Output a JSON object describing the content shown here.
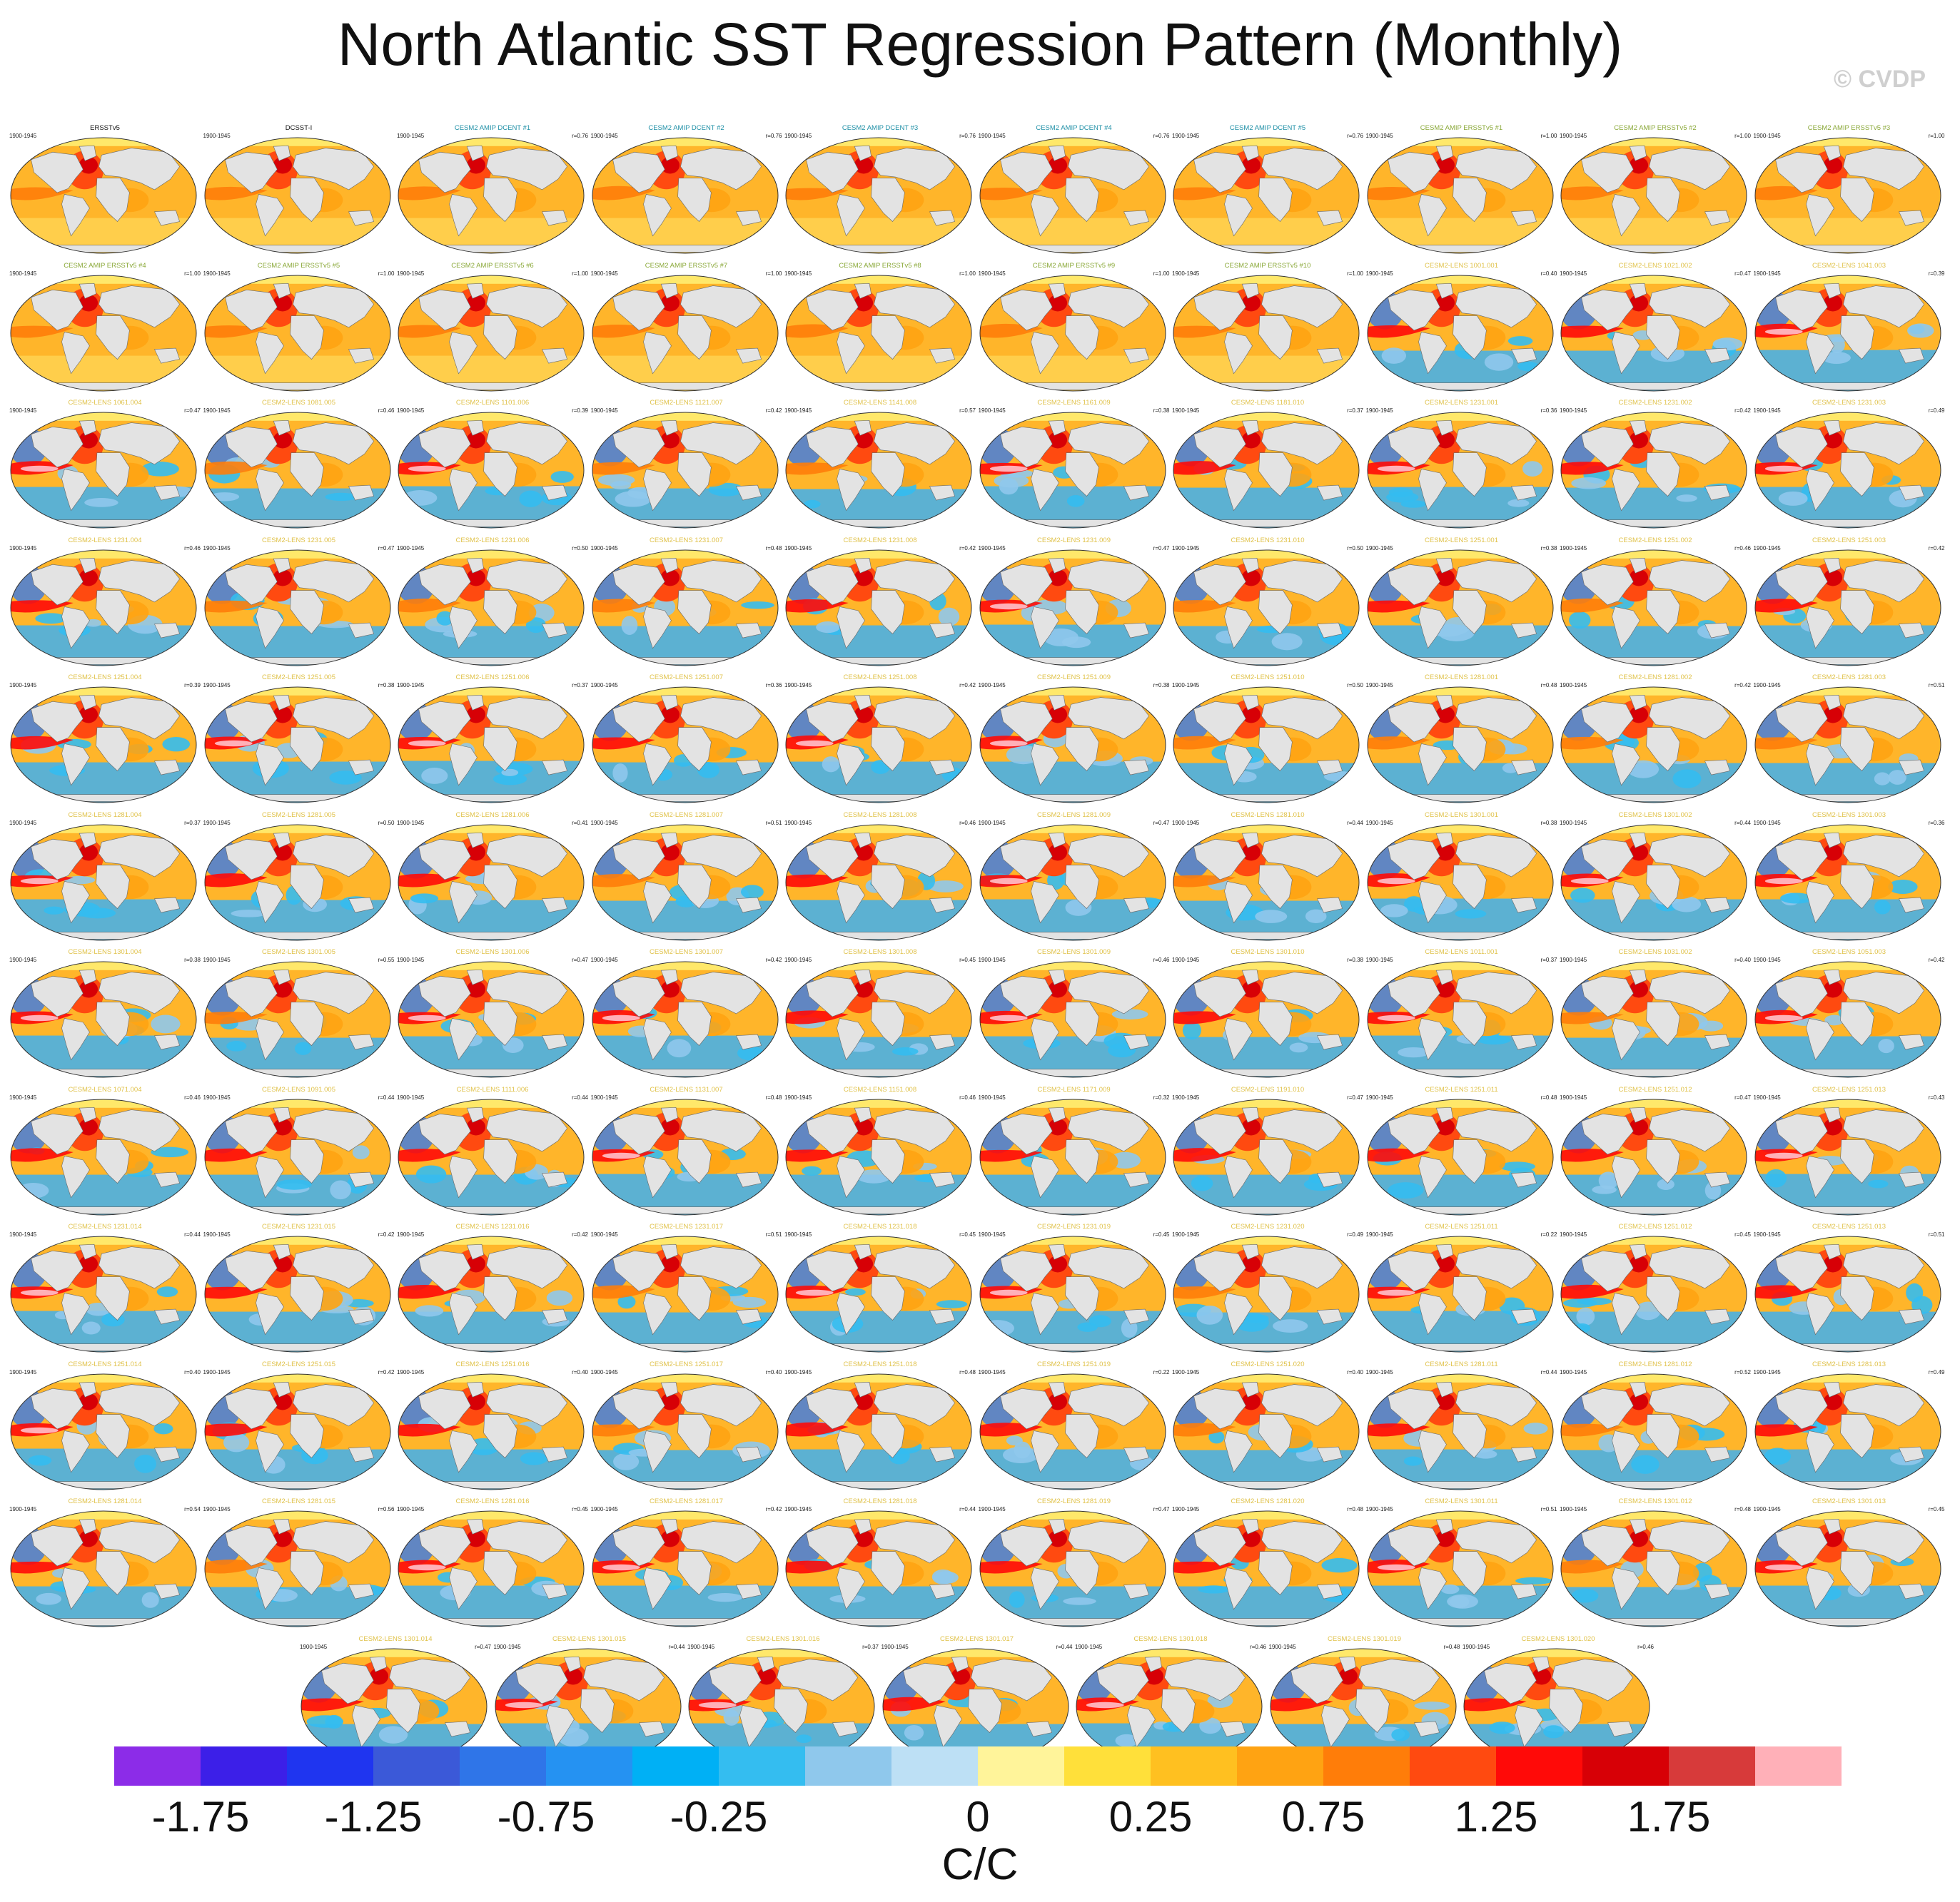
{
  "title": "North Atlantic SST Regression Pattern (Monthly)",
  "copyright": "© CVDP",
  "chart_data": {
    "type": "heatmap",
    "period": "1900-1945",
    "colorbar": {
      "units": "C/C",
      "tick_labels": [
        "-1.75",
        "-1.25",
        "-0.75",
        "-0.25",
        "0",
        "0.25",
        "0.75",
        "1.25",
        "1.75"
      ],
      "colors": [
        "#8c2ce8",
        "#3c1fe8",
        "#1f35f0",
        "#3b59d8",
        "#2f75e8",
        "#2592f2",
        "#00b0f5",
        "#34bdf0",
        "#8fc8ec",
        "#bde0f5",
        "#fff49a",
        "#ffe03a",
        "#ffc020",
        "#ffa312",
        "#ff7d09",
        "#ff4a10",
        "#ff0a08",
        "#d70006",
        "#d73a3a",
        "#ffb0b8"
      ]
    },
    "panels": [
      {
        "title": "ERSSTv5",
        "corr": "",
        "color": "#111111",
        "cool": 0.0
      },
      {
        "title": "DCSST-I",
        "corr": "",
        "color": "#111111",
        "cool": 0.0
      },
      {
        "title": "CESM2 AMIP DCENT #1",
        "corr": "r=0.76",
        "color": "#1e8fa6",
        "cool": 0.0
      },
      {
        "title": "CESM2 AMIP DCENT #2",
        "corr": "r=0.76",
        "color": "#1e8fa6",
        "cool": 0.0
      },
      {
        "title": "CESM2 AMIP DCENT #3",
        "corr": "r=0.76",
        "color": "#1e8fa6",
        "cool": 0.0
      },
      {
        "title": "CESM2 AMIP DCENT #4",
        "corr": "r=0.76",
        "color": "#1e8fa6",
        "cool": 0.0
      },
      {
        "title": "CESM2 AMIP DCENT #5",
        "corr": "r=0.76",
        "color": "#1e8fa6",
        "cool": 0.0
      },
      {
        "title": "CESM2 AMIP ERSSTv5 #1",
        "corr": "r=1.00",
        "color": "#8aa838",
        "cool": 0.0
      },
      {
        "title": "CESM2 AMIP ERSSTv5 #2",
        "corr": "r=1.00",
        "color": "#8aa838",
        "cool": 0.0
      },
      {
        "title": "CESM2 AMIP ERSSTv5 #3",
        "corr": "r=1.00",
        "color": "#8aa838",
        "cool": 0.0
      },
      {
        "title": "CESM2 AMIP ERSSTv5 #4",
        "corr": "r=1.00",
        "color": "#8aa838",
        "cool": 0.0
      },
      {
        "title": "CESM2 AMIP ERSSTv5 #5",
        "corr": "r=1.00",
        "color": "#8aa838",
        "cool": 0.0
      },
      {
        "title": "CESM2 AMIP ERSSTv5 #6",
        "corr": "r=1.00",
        "color": "#8aa838",
        "cool": 0.0
      },
      {
        "title": "CESM2 AMIP ERSSTv5 #7",
        "corr": "r=1.00",
        "color": "#8aa838",
        "cool": 0.0
      },
      {
        "title": "CESM2 AMIP ERSSTv5 #8",
        "corr": "r=1.00",
        "color": "#8aa838",
        "cool": 0.0
      },
      {
        "title": "CESM2 AMIP ERSSTv5 #9",
        "corr": "r=1.00",
        "color": "#8aa838",
        "cool": 0.0
      },
      {
        "title": "CESM2 AMIP ERSSTv5 #10",
        "corr": "r=1.00",
        "color": "#8aa838",
        "cool": 0.0
      },
      {
        "title": "CESM2-LENS 1001.001",
        "corr": "r=0.40",
        "color": "#e0c24a",
        "cool": 0.35
      },
      {
        "title": "CESM2-LENS 1021.002",
        "corr": "r=0.47",
        "color": "#e0c24a",
        "cool": 0.35
      },
      {
        "title": "CESM2-LENS 1041.003",
        "corr": "r=0.39",
        "color": "#e0c24a",
        "cool": 0.4
      },
      {
        "title": "CESM2-LENS 1061.004",
        "corr": "r=0.47",
        "color": "#e0c24a",
        "cool": 0.4
      },
      {
        "title": "CESM2-LENS 1081.005",
        "corr": "r=0.46",
        "color": "#e0c24a",
        "cool": 0.3
      },
      {
        "title": "CESM2-LENS 1101.006",
        "corr": "r=0.39",
        "color": "#e0c24a",
        "cool": 0.45
      },
      {
        "title": "CESM2-LENS 1121.007",
        "corr": "r=0.42",
        "color": "#e0c24a",
        "cool": 0.3
      },
      {
        "title": "CESM2-LENS 1141.008",
        "corr": "r=0.57",
        "color": "#e0c24a",
        "cool": 0.25
      },
      {
        "title": "CESM2-LENS 1161.009",
        "corr": "r=0.38",
        "color": "#e0c24a",
        "cool": 0.45
      },
      {
        "title": "CESM2-LENS 1181.010",
        "corr": "r=0.37",
        "color": "#e0c24a",
        "cool": 0.35
      },
      {
        "title": "CESM2-LENS 1231.001",
        "corr": "r=0.36",
        "color": "#e0c24a",
        "cool": 0.4
      },
      {
        "title": "CESM2-LENS 1231.002",
        "corr": "r=0.42",
        "color": "#e0c24a",
        "cool": 0.35
      },
      {
        "title": "CESM2-LENS 1231.003",
        "corr": "r=0.49",
        "color": "#e0c24a",
        "cool": 0.4
      },
      {
        "title": "CESM2-LENS 1231.004",
        "corr": "r=0.46",
        "color": "#e0c24a",
        "cool": 0.35
      },
      {
        "title": "CESM2-LENS 1231.005",
        "corr": "r=0.47",
        "color": "#e0c24a",
        "cool": 0.3
      },
      {
        "title": "CESM2-LENS 1231.006",
        "corr": "r=0.50",
        "color": "#e0c24a",
        "cool": 0.3
      },
      {
        "title": "CESM2-LENS 1231.007",
        "corr": "r=0.48",
        "color": "#e0c24a",
        "cool": 0.3
      },
      {
        "title": "CESM2-LENS 1231.008",
        "corr": "r=0.42",
        "color": "#e0c24a",
        "cool": 0.35
      },
      {
        "title": "CESM2-LENS 1231.009",
        "corr": "r=0.47",
        "color": "#e0c24a",
        "cool": 0.4
      },
      {
        "title": "CESM2-LENS 1231.010",
        "corr": "r=0.50",
        "color": "#e0c24a",
        "cool": 0.3
      },
      {
        "title": "CESM2-LENS 1251.001",
        "corr": "r=0.38",
        "color": "#e0c24a",
        "cool": 0.35
      },
      {
        "title": "CESM2-LENS 1251.002",
        "corr": "r=0.46",
        "color": "#e0c24a",
        "cool": 0.3
      },
      {
        "title": "CESM2-LENS 1251.003",
        "corr": "r=0.42",
        "color": "#e0c24a",
        "cool": 0.35
      },
      {
        "title": "CESM2-LENS 1251.004",
        "corr": "r=0.39",
        "color": "#e0c24a",
        "cool": 0.35
      },
      {
        "title": "CESM2-LENS 1251.005",
        "corr": "r=0.38",
        "color": "#e0c24a",
        "cool": 0.4
      },
      {
        "title": "CESM2-LENS 1251.006",
        "corr": "r=0.37",
        "color": "#e0c24a",
        "cool": 0.45
      },
      {
        "title": "CESM2-LENS 1251.007",
        "corr": "r=0.36",
        "color": "#e0c24a",
        "cool": 0.35
      },
      {
        "title": "CESM2-LENS 1251.008",
        "corr": "r=0.42",
        "color": "#e0c24a",
        "cool": 0.4
      },
      {
        "title": "CESM2-LENS 1251.009",
        "corr": "r=0.38",
        "color": "#e0c24a",
        "cool": 0.4
      },
      {
        "title": "CESM2-LENS 1251.010",
        "corr": "r=0.50",
        "color": "#e0c24a",
        "cool": 0.3
      },
      {
        "title": "CESM2-LENS 1281.001",
        "corr": "r=0.48",
        "color": "#e0c24a",
        "cool": 0.3
      },
      {
        "title": "CESM2-LENS 1281.002",
        "corr": "r=0.42",
        "color": "#e0c24a",
        "cool": 0.3
      },
      {
        "title": "CESM2-LENS 1281.003",
        "corr": "r=0.51",
        "color": "#e0c24a",
        "cool": 0.3
      },
      {
        "title": "CESM2-LENS 1281.004",
        "corr": "r=0.37",
        "color": "#e0c24a",
        "cool": 0.4
      },
      {
        "title": "CESM2-LENS 1281.005",
        "corr": "r=0.50",
        "color": "#e0c24a",
        "cool": 0.35
      },
      {
        "title": "CESM2-LENS 1281.006",
        "corr": "r=0.41",
        "color": "#e0c24a",
        "cool": 0.35
      },
      {
        "title": "CESM2-LENS 1281.007",
        "corr": "r=0.51",
        "color": "#e0c24a",
        "cool": 0.3
      },
      {
        "title": "CESM2-LENS 1281.008",
        "corr": "r=0.46",
        "color": "#e0c24a",
        "cool": 0.35
      },
      {
        "title": "CESM2-LENS 1281.009",
        "corr": "r=0.47",
        "color": "#e0c24a",
        "cool": 0.4
      },
      {
        "title": "CESM2-LENS 1281.010",
        "corr": "r=0.44",
        "color": "#e0c24a",
        "cool": 0.3
      },
      {
        "title": "CESM2-LENS 1301.001",
        "corr": "r=0.38",
        "color": "#e0c24a",
        "cool": 0.45
      },
      {
        "title": "CESM2-LENS 1301.002",
        "corr": "r=0.44",
        "color": "#e0c24a",
        "cool": 0.4
      },
      {
        "title": "CESM2-LENS 1301.003",
        "corr": "r=0.36",
        "color": "#e0c24a",
        "cool": 0.4
      },
      {
        "title": "CESM2-LENS 1301.004",
        "corr": "r=0.38",
        "color": "#e0c24a",
        "cool": 0.45
      },
      {
        "title": "CESM2-LENS 1301.005",
        "corr": "r=0.55",
        "color": "#e0c24a",
        "cool": 0.3
      },
      {
        "title": "CESM2-LENS 1301.006",
        "corr": "r=0.47",
        "color": "#e0c24a",
        "cool": 0.4
      },
      {
        "title": "CESM2-LENS 1301.007",
        "corr": "r=0.42",
        "color": "#e0c24a",
        "cool": 0.45
      },
      {
        "title": "CESM2-LENS 1301.008",
        "corr": "r=0.45",
        "color": "#e0c24a",
        "cool": 0.35
      },
      {
        "title": "CESM2-LENS 1301.009",
        "corr": "r=0.46",
        "color": "#e0c24a",
        "cool": 0.4
      },
      {
        "title": "CESM2-LENS 1301.010",
        "corr": "r=0.38",
        "color": "#e0c24a",
        "cool": 0.35
      },
      {
        "title": "CESM2-LENS 1011.001",
        "corr": "r=0.37",
        "color": "#e0c24a",
        "cool": 0.45
      },
      {
        "title": "CESM2-LENS 1031.002",
        "corr": "r=0.40",
        "color": "#e0c24a",
        "cool": 0.3
      },
      {
        "title": "CESM2-LENS 1051.003",
        "corr": "r=0.42",
        "color": "#e0c24a",
        "cool": 0.4
      },
      {
        "title": "CESM2-LENS 1071.004",
        "corr": "r=0.46",
        "color": "#e0c24a",
        "cool": 0.35
      },
      {
        "title": "CESM2-LENS 1091.005",
        "corr": "r=0.44",
        "color": "#e0c24a",
        "cool": 0.35
      },
      {
        "title": "CESM2-LENS 1111.006",
        "corr": "r=0.44",
        "color": "#e0c24a",
        "cool": 0.35
      },
      {
        "title": "CESM2-LENS 1131.007",
        "corr": "r=0.48",
        "color": "#e0c24a",
        "cool": 0.4
      },
      {
        "title": "CESM2-LENS 1151.008",
        "corr": "r=0.46",
        "color": "#e0c24a",
        "cool": 0.35
      },
      {
        "title": "CESM2-LENS 1171.009",
        "corr": "r=0.32",
        "color": "#e0c24a",
        "cool": 0.35
      },
      {
        "title": "CESM2-LENS 1191.010",
        "corr": "r=0.47",
        "color": "#e0c24a",
        "cool": 0.35
      },
      {
        "title": "CESM2-LENS 1251.011",
        "corr": "r=0.48",
        "color": "#e0c24a",
        "cool": 0.35
      },
      {
        "title": "CESM2-LENS 1251.012",
        "corr": "r=0.47",
        "color": "#e0c24a",
        "cool": 0.35
      },
      {
        "title": "CESM2-LENS 1251.013",
        "corr": "r=0.43",
        "color": "#e0c24a",
        "cool": 0.4
      },
      {
        "title": "CESM2-LENS 1231.014",
        "corr": "r=0.44",
        "color": "#e0c24a",
        "cool": 0.4
      },
      {
        "title": "CESM2-LENS 1231.015",
        "corr": "r=0.42",
        "color": "#e0c24a",
        "cool": 0.35
      },
      {
        "title": "CESM2-LENS 1231.016",
        "corr": "r=0.42",
        "color": "#e0c24a",
        "cool": 0.35
      },
      {
        "title": "CESM2-LENS 1231.017",
        "corr": "r=0.51",
        "color": "#e0c24a",
        "cool": 0.3
      },
      {
        "title": "CESM2-LENS 1231.018",
        "corr": "r=0.45",
        "color": "#e0c24a",
        "cool": 0.4
      },
      {
        "title": "CESM2-LENS 1231.019",
        "corr": "r=0.45",
        "color": "#e0c24a",
        "cool": 0.4
      },
      {
        "title": "CESM2-LENS 1231.020",
        "corr": "r=0.49",
        "color": "#e0c24a",
        "cool": 0.3
      },
      {
        "title": "CESM2-LENS 1251.011",
        "corr": "r=0.22",
        "color": "#e0c24a",
        "cool": 0.4
      },
      {
        "title": "CESM2-LENS 1251.012",
        "corr": "r=0.45",
        "color": "#e0c24a",
        "cool": 0.35
      },
      {
        "title": "CESM2-LENS 1251.013",
        "corr": "r=0.51",
        "color": "#e0c24a",
        "cool": 0.35
      },
      {
        "title": "CESM2-LENS 1251.014",
        "corr": "r=0.40",
        "color": "#e0c24a",
        "cool": 0.4
      },
      {
        "title": "CESM2-LENS 1251.015",
        "corr": "r=0.42",
        "color": "#e0c24a",
        "cool": 0.35
      },
      {
        "title": "CESM2-LENS 1251.016",
        "corr": "r=0.40",
        "color": "#e0c24a",
        "cool": 0.35
      },
      {
        "title": "CESM2-LENS 1251.017",
        "corr": "r=0.40",
        "color": "#e0c24a",
        "cool": 0.3
      },
      {
        "title": "CESM2-LENS 1251.018",
        "corr": "r=0.48",
        "color": "#e0c24a",
        "cool": 0.35
      },
      {
        "title": "CESM2-LENS 1251.019",
        "corr": "r=0.22",
        "color": "#e0c24a",
        "cool": 0.35
      },
      {
        "title": "CESM2-LENS 1251.020",
        "corr": "r=0.40",
        "color": "#e0c24a",
        "cool": 0.3
      },
      {
        "title": "CESM2-LENS 1281.011",
        "corr": "r=0.44",
        "color": "#e0c24a",
        "cool": 0.35
      },
      {
        "title": "CESM2-LENS 1281.012",
        "corr": "r=0.52",
        "color": "#e0c24a",
        "cool": 0.3
      },
      {
        "title": "CESM2-LENS 1281.013",
        "corr": "r=0.49",
        "color": "#e0c24a",
        "cool": 0.35
      },
      {
        "title": "CESM2-LENS 1281.014",
        "corr": "r=0.54",
        "color": "#e0c24a",
        "cool": 0.35
      },
      {
        "title": "CESM2-LENS 1281.015",
        "corr": "r=0.56",
        "color": "#e0c24a",
        "cool": 0.3
      },
      {
        "title": "CESM2-LENS 1281.016",
        "corr": "r=0.45",
        "color": "#e0c24a",
        "cool": 0.4
      },
      {
        "title": "CESM2-LENS 1281.017",
        "corr": "r=0.42",
        "color": "#e0c24a",
        "cool": 0.4
      },
      {
        "title": "CESM2-LENS 1281.018",
        "corr": "r=0.44",
        "color": "#e0c24a",
        "cool": 0.35
      },
      {
        "title": "CESM2-LENS 1281.019",
        "corr": "r=0.47",
        "color": "#e0c24a",
        "cool": 0.35
      },
      {
        "title": "CESM2-LENS 1281.020",
        "corr": "r=0.48",
        "color": "#e0c24a",
        "cool": 0.35
      },
      {
        "title": "CESM2-LENS 1301.011",
        "corr": "r=0.51",
        "color": "#e0c24a",
        "cool": 0.4
      },
      {
        "title": "CESM2-LENS 1301.012",
        "corr": "r=0.48",
        "color": "#e0c24a",
        "cool": 0.3
      },
      {
        "title": "CESM2-LENS 1301.013",
        "corr": "r=0.45",
        "color": "#e0c24a",
        "cool": 0.4
      },
      {
        "title": "CESM2-LENS 1301.014",
        "corr": "r=0.47",
        "color": "#e0c24a",
        "cool": 0.35
      },
      {
        "title": "CESM2-LENS 1301.015",
        "corr": "r=0.44",
        "color": "#e0c24a",
        "cool": 0.4
      },
      {
        "title": "CESM2-LENS 1301.016",
        "corr": "r=0.37",
        "color": "#e0c24a",
        "cool": 0.4
      },
      {
        "title": "CESM2-LENS 1301.017",
        "corr": "r=0.44",
        "color": "#e0c24a",
        "cool": 0.35
      },
      {
        "title": "CESM2-LENS 1301.018",
        "corr": "r=0.46",
        "color": "#e0c24a",
        "cool": 0.4
      },
      {
        "title": "CESM2-LENS 1301.019",
        "corr": "r=0.48",
        "color": "#e0c24a",
        "cool": 0.35
      },
      {
        "title": "CESM2-LENS 1301.020",
        "corr": "r=0.46",
        "color": "#e0c24a",
        "cool": 0.35
      }
    ]
  }
}
